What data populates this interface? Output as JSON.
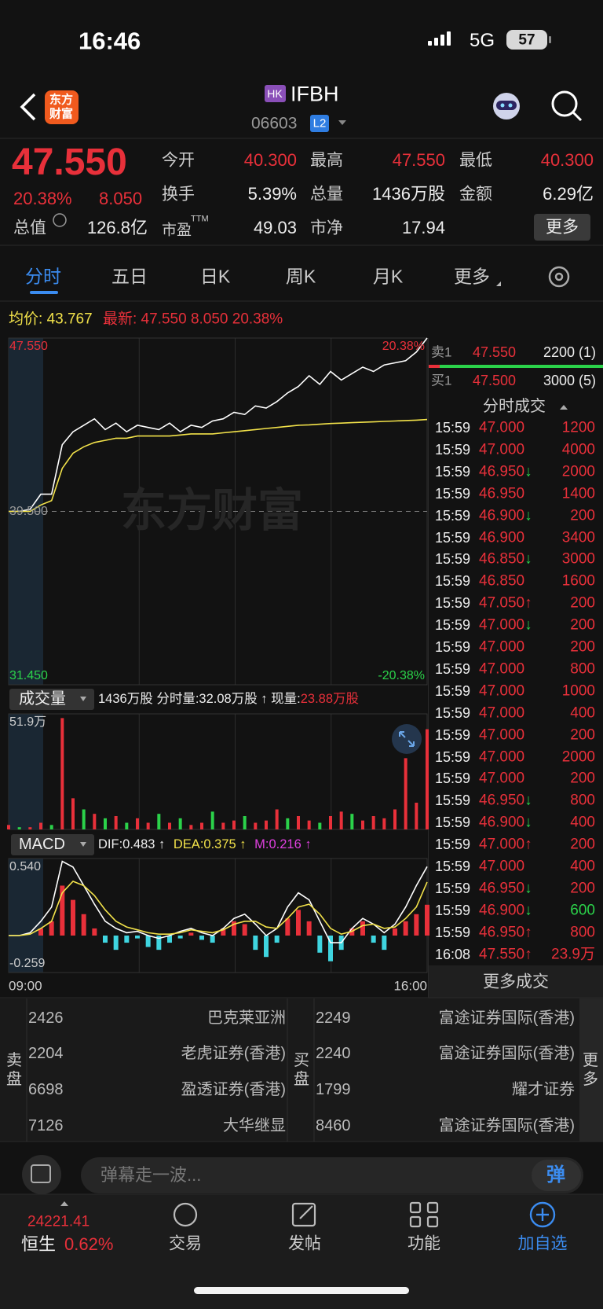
{
  "status_bar": {
    "time": "16:46",
    "network": "5G",
    "battery": "57"
  },
  "header": {
    "logo": [
      "东方",
      "财富"
    ],
    "market": "HK",
    "name": "IFBH",
    "code": "06603",
    "level": "L2"
  },
  "quote": {
    "price": "47.550",
    "change_pct": "20.38%",
    "change": "8.050",
    "fields": [
      [
        "今开",
        "40.300"
      ],
      [
        "最高",
        "47.550"
      ],
      [
        "最低",
        "40.300"
      ],
      [
        "换手",
        "5.39%"
      ],
      [
        "总量",
        "1436万股"
      ],
      [
        "金额",
        "6.29亿"
      ]
    ],
    "market_cap_label": "总值",
    "market_cap": "126.8亿",
    "pe_label": "市盈",
    "pe_suffix": "TTM",
    "pe": "49.03",
    "pb_label": "市净",
    "pb": "17.94",
    "more": "更多"
  },
  "tabs": [
    "分时",
    "五日",
    "日K",
    "周K",
    "月K",
    "更多"
  ],
  "info_line": {
    "avg_label": "均价:",
    "avg": "43.767",
    "latest_label": "最新:",
    "latest": "47.550",
    "change": "8.050",
    "change_pct": "20.38%"
  },
  "volume_header": {
    "selector": "成交量",
    "total": "1436万股",
    "minute_label": "分时量:",
    "minute": "32.08万股 ↑",
    "current_label": "现量:",
    "current": "23.88万股"
  },
  "macd_header": {
    "selector": "MACD",
    "dif": "DIF:0.483 ↑",
    "dea": "DEA:0.375 ↑",
    "m": "M:0.216 ↑"
  },
  "chart_data": [
    {
      "type": "line",
      "categories": [
        null,
        null,
        null,
        null,
        null,
        null,
        null,
        null,
        null,
        null,
        null,
        null,
        null,
        null,
        null,
        null,
        null,
        null,
        null,
        null,
        null,
        null,
        null,
        null,
        null,
        null,
        null,
        null,
        null,
        null,
        null,
        null,
        null,
        null,
        null,
        null,
        null,
        null,
        null,
        null
      ],
      "series": [
        {
          "color": "#ffffff",
          "values": [
            39.5,
            39.5,
            39.6,
            40.3,
            40.3,
            42.6,
            43.2,
            43.5,
            43.8,
            43.3,
            43.6,
            43.2,
            43.5,
            43.4,
            43.3,
            43.6,
            43.2,
            43.5,
            43.4,
            43.7,
            43.8,
            44.1,
            44.0,
            44.4,
            44.3,
            44.6,
            45.0,
            45.3,
            45.8,
            45.4,
            46.0,
            45.6,
            45.9,
            46.2,
            46.0,
            46.3,
            46.4,
            46.5,
            46.9,
            47.55
          ]
        },
        {
          "color": "#f2e24a",
          "values": [
            39.5,
            39.5,
            39.5,
            39.8,
            40.0,
            41.5,
            42.2,
            42.5,
            42.7,
            42.8,
            42.9,
            42.9,
            43.0,
            43.0,
            43.0,
            43.0,
            43.05,
            43.1,
            43.1,
            43.1,
            43.15,
            43.2,
            43.25,
            43.3,
            43.35,
            43.4,
            43.45,
            43.5,
            43.52,
            43.55,
            43.58,
            43.6,
            43.62,
            43.64,
            43.66,
            43.68,
            43.7,
            43.72,
            43.74,
            43.767
          ]
        }
      ],
      "ylim": [
        31.45,
        47.55
      ],
      "yticks": [
        {
          "value": 47.55,
          "label": "47.550"
        },
        {
          "value": 39.5,
          "label": "39.500"
        },
        {
          "value": 31.45,
          "label": "31.450"
        }
      ],
      "y2lim": [
        -20.38,
        20.38
      ],
      "y2ticks": [
        {
          "value": 20.38,
          "label": "20.38%"
        },
        {
          "value": -20.38,
          "label": "-20.38%"
        }
      ]
    },
    {
      "type": "bar",
      "categories": [
        null,
        null,
        null,
        null,
        null,
        null,
        null,
        null,
        null,
        null,
        null,
        null,
        null,
        null,
        null,
        null,
        null,
        null,
        null,
        null,
        null,
        null,
        null,
        null,
        null,
        null,
        null,
        null,
        null,
        null,
        null,
        null,
        null,
        null,
        null,
        null,
        null,
        null,
        null,
        null
      ],
      "values": [
        2,
        1,
        1,
        3,
        2,
        50,
        14,
        9,
        7,
        5,
        6,
        3,
        5,
        3,
        7,
        3,
        5,
        2,
        3,
        8,
        3,
        4,
        6,
        3,
        4,
        9,
        5,
        6,
        4,
        3,
        6,
        8,
        7,
        4,
        6,
        5,
        9,
        32,
        12,
        45
      ],
      "colors": [
        "#e8303a",
        "#2bd24a",
        "#e8303a",
        "#e8303a",
        "#2bd24a",
        "#e8303a",
        "#e8303a",
        "#2bd24a",
        "#e8303a",
        "#2bd24a",
        "#e8303a",
        "#2bd24a",
        "#e8303a",
        "#e8303a",
        "#2bd24a",
        "#e8303a",
        "#2bd24a",
        "#e8303a",
        "#e8303a",
        "#2bd24a",
        "#e8303a",
        "#e8303a",
        "#2bd24a",
        "#e8303a",
        "#e8303a",
        "#e8303a",
        "#2bd24a",
        "#e8303a",
        "#e8303a",
        "#2bd24a",
        "#e8303a",
        "#e8303a",
        "#2bd24a",
        "#e8303a",
        "#e8303a",
        "#e8303a",
        "#e8303a",
        "#e8303a",
        "#e8303a",
        "#e8303a"
      ],
      "ylim": [
        0,
        51.9
      ],
      "yticks": [
        {
          "value": 51.9,
          "label": "51.9万"
        }
      ]
    },
    {
      "type": "macd",
      "categories": [
        "09:00",
        null,
        null,
        null,
        null,
        null,
        null,
        null,
        null,
        null,
        null,
        null,
        null,
        null,
        null,
        null,
        null,
        null,
        null,
        null,
        null,
        null,
        null,
        null,
        null,
        null,
        null,
        null,
        null,
        null,
        null,
        null,
        null,
        null,
        null,
        null,
        null,
        null,
        null,
        "16:00"
      ],
      "values": [
        0,
        0,
        0,
        0.05,
        0.1,
        0.35,
        0.25,
        0.15,
        0.05,
        -0.05,
        -0.1,
        -0.05,
        -0.02,
        -0.08,
        -0.1,
        -0.05,
        -0.02,
        0.02,
        -0.03,
        -0.05,
        0.05,
        0.1,
        0.08,
        -0.1,
        -0.15,
        -0.05,
        0.12,
        0.18,
        0.1,
        -0.12,
        -0.18,
        -0.1,
        0.05,
        0.1,
        -0.05,
        -0.1,
        0.05,
        0.1,
        0.15,
        0.216
      ],
      "colors": {
        "positive": "#e8303a",
        "negative": "#3fd5e0"
      },
      "series": [
        {
          "color": "#ffffff",
          "values": [
            0,
            0,
            0.02,
            0.1,
            0.2,
            0.52,
            0.48,
            0.35,
            0.22,
            0.1,
            0.05,
            0.02,
            0.03,
            0,
            -0.02,
            0,
            0.03,
            0.05,
            0.02,
            0,
            0.05,
            0.12,
            0.15,
            0.08,
            0,
            0.05,
            0.2,
            0.3,
            0.25,
            0.1,
            -0.05,
            -0.05,
            0.05,
            0.12,
            0.08,
            0.02,
            0.08,
            0.2,
            0.35,
            0.483
          ]
        },
        {
          "color": "#f2e24a",
          "values": [
            0,
            0,
            0.01,
            0.05,
            0.1,
            0.3,
            0.38,
            0.35,
            0.28,
            0.18,
            0.1,
            0.06,
            0.04,
            0.02,
            0.01,
            0.01,
            0.02,
            0.04,
            0.03,
            0.02,
            0.04,
            0.08,
            0.1,
            0.1,
            0.06,
            0.05,
            0.12,
            0.2,
            0.22,
            0.15,
            0.05,
            0.01,
            0.03,
            0.07,
            0.08,
            0.05,
            0.06,
            0.12,
            0.2,
            0.375
          ]
        }
      ],
      "ylim": [
        -0.259,
        0.54
      ],
      "yticks": [
        {
          "value": 0.54,
          "label": "0.540"
        },
        {
          "value": -0.259,
          "label": "-0.259"
        }
      ]
    }
  ],
  "order_book": {
    "ask": {
      "label": "卖1",
      "price": "47.550",
      "volume": "2200 (1)"
    },
    "bid": {
      "label": "买1",
      "price": "47.500",
      "volume": "3000 (5)"
    }
  },
  "trades": {
    "title": "分时成交",
    "rows": [
      {
        "time": "15:59",
        "price": "47.000",
        "volume": "1200",
        "color": "#e8303a"
      },
      {
        "time": "15:59",
        "price": "47.000",
        "volume": "4000",
        "color": "#e8303a"
      },
      {
        "time": "15:59",
        "price": "46.950",
        "arrow": "↓",
        "arrow_color": "#2bd24a",
        "volume": "2000",
        "color": "#e8303a"
      },
      {
        "time": "15:59",
        "price": "46.950",
        "volume": "1400",
        "color": "#e8303a"
      },
      {
        "time": "15:59",
        "price": "46.900",
        "arrow": "↓",
        "arrow_color": "#2bd24a",
        "volume": "200",
        "color": "#e8303a"
      },
      {
        "time": "15:59",
        "price": "46.900",
        "volume": "3400",
        "color": "#e8303a"
      },
      {
        "time": "15:59",
        "price": "46.850",
        "arrow": "↓",
        "arrow_color": "#2bd24a",
        "volume": "3000",
        "color": "#e8303a"
      },
      {
        "time": "15:59",
        "price": "46.850",
        "volume": "1600",
        "color": "#e8303a"
      },
      {
        "time": "15:59",
        "price": "47.050",
        "arrow": "↑",
        "arrow_color": "#e8303a",
        "volume": "200",
        "color": "#e8303a"
      },
      {
        "time": "15:59",
        "price": "47.000",
        "arrow": "↓",
        "arrow_color": "#2bd24a",
        "volume": "200",
        "color": "#e8303a"
      },
      {
        "time": "15:59",
        "price": "47.000",
        "volume": "200",
        "color": "#e8303a"
      },
      {
        "time": "15:59",
        "price": "47.000",
        "volume": "800",
        "color": "#e8303a"
      },
      {
        "time": "15:59",
        "price": "47.000",
        "volume": "1000",
        "color": "#e8303a"
      },
      {
        "time": "15:59",
        "price": "47.000",
        "volume": "400",
        "color": "#e8303a"
      },
      {
        "time": "15:59",
        "price": "47.000",
        "volume": "200",
        "color": "#e8303a"
      },
      {
        "time": "15:59",
        "price": "47.000",
        "volume": "2000",
        "color": "#e8303a"
      },
      {
        "time": "15:59",
        "price": "47.000",
        "volume": "200",
        "color": "#e8303a"
      },
      {
        "time": "15:59",
        "price": "46.950",
        "arrow": "↓",
        "arrow_color": "#2bd24a",
        "volume": "800",
        "color": "#e8303a"
      },
      {
        "time": "15:59",
        "price": "46.900",
        "arrow": "↓",
        "arrow_color": "#2bd24a",
        "volume": "400",
        "color": "#e8303a"
      },
      {
        "time": "15:59",
        "price": "47.000",
        "arrow": "↑",
        "arrow_color": "#e8303a",
        "volume": "200",
        "color": "#e8303a"
      },
      {
        "time": "15:59",
        "price": "47.000",
        "volume": "400",
        "color": "#e8303a"
      },
      {
        "time": "15:59",
        "price": "46.950",
        "arrow": "↓",
        "arrow_color": "#2bd24a",
        "volume": "200",
        "color": "#e8303a"
      },
      {
        "time": "15:59",
        "price": "46.900",
        "arrow": "↓",
        "arrow_color": "#2bd24a",
        "volume": "600",
        "color": "#2bd24a"
      },
      {
        "time": "15:59",
        "price": "46.950",
        "arrow": "↑",
        "arrow_color": "#e8303a",
        "volume": "800",
        "color": "#e8303a"
      },
      {
        "time": "16:08",
        "price": "47.550",
        "arrow": "↑",
        "arrow_color": "#e8303a",
        "volume": "23.9万",
        "color": "#e8303a"
      }
    ],
    "more": "更多成交"
  },
  "brokers": {
    "sell_label": "卖盘",
    "buy_label": "买盘",
    "more": "更多",
    "sell": [
      [
        "2426",
        "巴克莱亚洲"
      ],
      [
        "2204",
        "老虎证券(香港)"
      ],
      [
        "6698",
        "盈透证券(香港)"
      ],
      [
        "7126",
        "大华继显"
      ]
    ],
    "buy": [
      [
        "2249",
        "富途证券国际(香港)"
      ],
      [
        "2240",
        "富途证券国际(香港)"
      ],
      [
        "1799",
        "耀才证券"
      ],
      [
        "8460",
        "富途证券国际(香港)"
      ]
    ]
  },
  "danmu": {
    "placeholder": "弹幕走一波...",
    "button": "弹"
  },
  "bottom_nav": {
    "index_value": "24221.41",
    "index_name": "恒生",
    "index_pct": "0.62%",
    "items": [
      "交易",
      "发帖",
      "功能",
      "加自选"
    ]
  },
  "watermark": "东方财富"
}
